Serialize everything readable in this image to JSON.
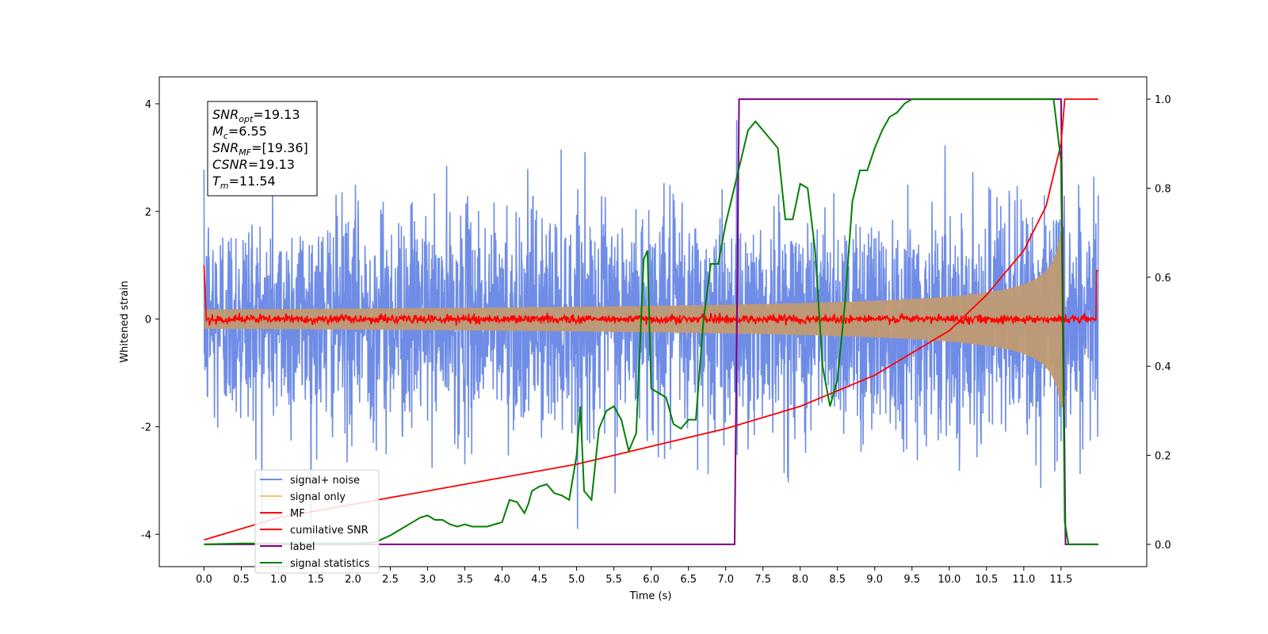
{
  "chart_data": {
    "type": "line",
    "title": "",
    "xlabel": "Time (s)",
    "ylabel": "Whitened strain",
    "xlim": [
      -0.6,
      12.65
    ],
    "ylim": [
      -4.6,
      4.5
    ],
    "y2lim": [
      -0.05,
      1.05
    ],
    "grid": false,
    "legend_position": "bottom-left",
    "x_ticks": [
      "0.0",
      "0.5",
      "1.0",
      "1.5",
      "2.0",
      "2.5",
      "3.0",
      "3.5",
      "4.0",
      "4.5",
      "5.0",
      "5.5",
      "6.0",
      "6.5",
      "7.0",
      "7.5",
      "8.0",
      "8.5",
      "9.0",
      "9.5",
      "10.0",
      "10.5",
      "11.0",
      "11.5"
    ],
    "y_ticks": [
      "-4",
      "-2",
      "0",
      "2",
      "4"
    ],
    "y2_ticks": [
      "0.0",
      "0.2",
      "0.4",
      "0.6",
      "0.8",
      "1.0"
    ],
    "annotation": {
      "lines": [
        {
          "base": "SNR",
          "sub": "opt",
          "value": "=19.13"
        },
        {
          "base": "M",
          "sub": "c",
          "value": "=6.55"
        },
        {
          "base": "SNR",
          "sub": "MF",
          "value": "=[19.36]"
        },
        {
          "base": "CSNR",
          "sub": "",
          "value": "=19.13"
        },
        {
          "base": "T",
          "sub": "m",
          "value": "=11.54"
        }
      ]
    },
    "series": [
      {
        "name": "signal+ noise",
        "color": "#6f8de6",
        "axis": "left",
        "note": "whitened noise with std ~1, t from 0 to 12"
      },
      {
        "name": "signal only",
        "color": "#f5c56e",
        "axis": "left",
        "note": "chirp growing in amplitude toward merger at ~11.5 s"
      },
      {
        "name": "MF",
        "color": "#ff0000",
        "axis": "left",
        "note": "matched-filter output near 0, spikes at edges"
      },
      {
        "name": "cumilative SNR",
        "color": "#ff0000",
        "axis": "right",
        "x": [
          0.0,
          1.0,
          2.0,
          3.0,
          4.0,
          5.0,
          6.0,
          7.0,
          8.0,
          9.0,
          9.5,
          10.0,
          10.5,
          11.0,
          11.3,
          11.5,
          11.55,
          11.6,
          12.0
        ],
        "y": [
          0.01,
          0.06,
          0.09,
          0.12,
          0.15,
          0.18,
          0.22,
          0.26,
          0.31,
          0.38,
          0.43,
          0.48,
          0.56,
          0.66,
          0.76,
          0.9,
          1.0,
          1.0,
          1.0
        ]
      },
      {
        "name": "label",
        "color": "#800080",
        "axis": "right",
        "x": [
          0.0,
          7.12,
          7.18,
          11.5,
          11.56,
          12.0
        ],
        "y": [
          0.0,
          0.0,
          1.0,
          1.0,
          0.0,
          0.0
        ]
      },
      {
        "name": "signal statistics",
        "color": "#008000",
        "axis": "right",
        "x": [
          0.0,
          0.5,
          1.0,
          1.5,
          2.0,
          2.3,
          2.5,
          2.7,
          2.9,
          3.0,
          3.1,
          3.2,
          3.3,
          3.4,
          3.5,
          3.6,
          3.7,
          3.8,
          3.9,
          4.0,
          4.1,
          4.2,
          4.3,
          4.35,
          4.4,
          4.5,
          4.6,
          4.7,
          4.8,
          4.9,
          5.0,
          5.05,
          5.1,
          5.2,
          5.3,
          5.4,
          5.5,
          5.6,
          5.7,
          5.8,
          5.9,
          5.95,
          6.0,
          6.1,
          6.2,
          6.3,
          6.4,
          6.5,
          6.6,
          6.7,
          6.8,
          6.9,
          7.0,
          7.1,
          7.2,
          7.3,
          7.4,
          7.5,
          7.6,
          7.7,
          7.8,
          7.9,
          8.0,
          8.1,
          8.2,
          8.3,
          8.4,
          8.5,
          8.6,
          8.7,
          8.8,
          8.9,
          9.0,
          9.1,
          9.2,
          9.3,
          9.4,
          9.5,
          9.6,
          10.0,
          10.5,
          11.0,
          11.4,
          11.5,
          11.55,
          11.6,
          11.7,
          12.0
        ],
        "y": [
          0.0,
          0.002,
          0.002,
          0.002,
          0.002,
          0.005,
          0.02,
          0.04,
          0.06,
          0.065,
          0.055,
          0.055,
          0.045,
          0.04,
          0.045,
          0.04,
          0.04,
          0.04,
          0.045,
          0.05,
          0.1,
          0.095,
          0.07,
          0.09,
          0.12,
          0.13,
          0.135,
          0.115,
          0.11,
          0.1,
          0.2,
          0.31,
          0.12,
          0.1,
          0.26,
          0.3,
          0.31,
          0.28,
          0.21,
          0.25,
          0.64,
          0.66,
          0.35,
          0.34,
          0.33,
          0.27,
          0.26,
          0.28,
          0.28,
          0.5,
          0.63,
          0.63,
          0.72,
          0.79,
          0.86,
          0.93,
          0.95,
          0.93,
          0.91,
          0.89,
          0.73,
          0.73,
          0.81,
          0.8,
          0.66,
          0.4,
          0.31,
          0.37,
          0.54,
          0.77,
          0.84,
          0.84,
          0.89,
          0.93,
          0.96,
          0.97,
          0.99,
          1.0,
          1.0,
          1.0,
          1.0,
          1.0,
          1.0,
          0.86,
          0.05,
          0.0,
          0.0,
          0.0
        ]
      }
    ]
  }
}
